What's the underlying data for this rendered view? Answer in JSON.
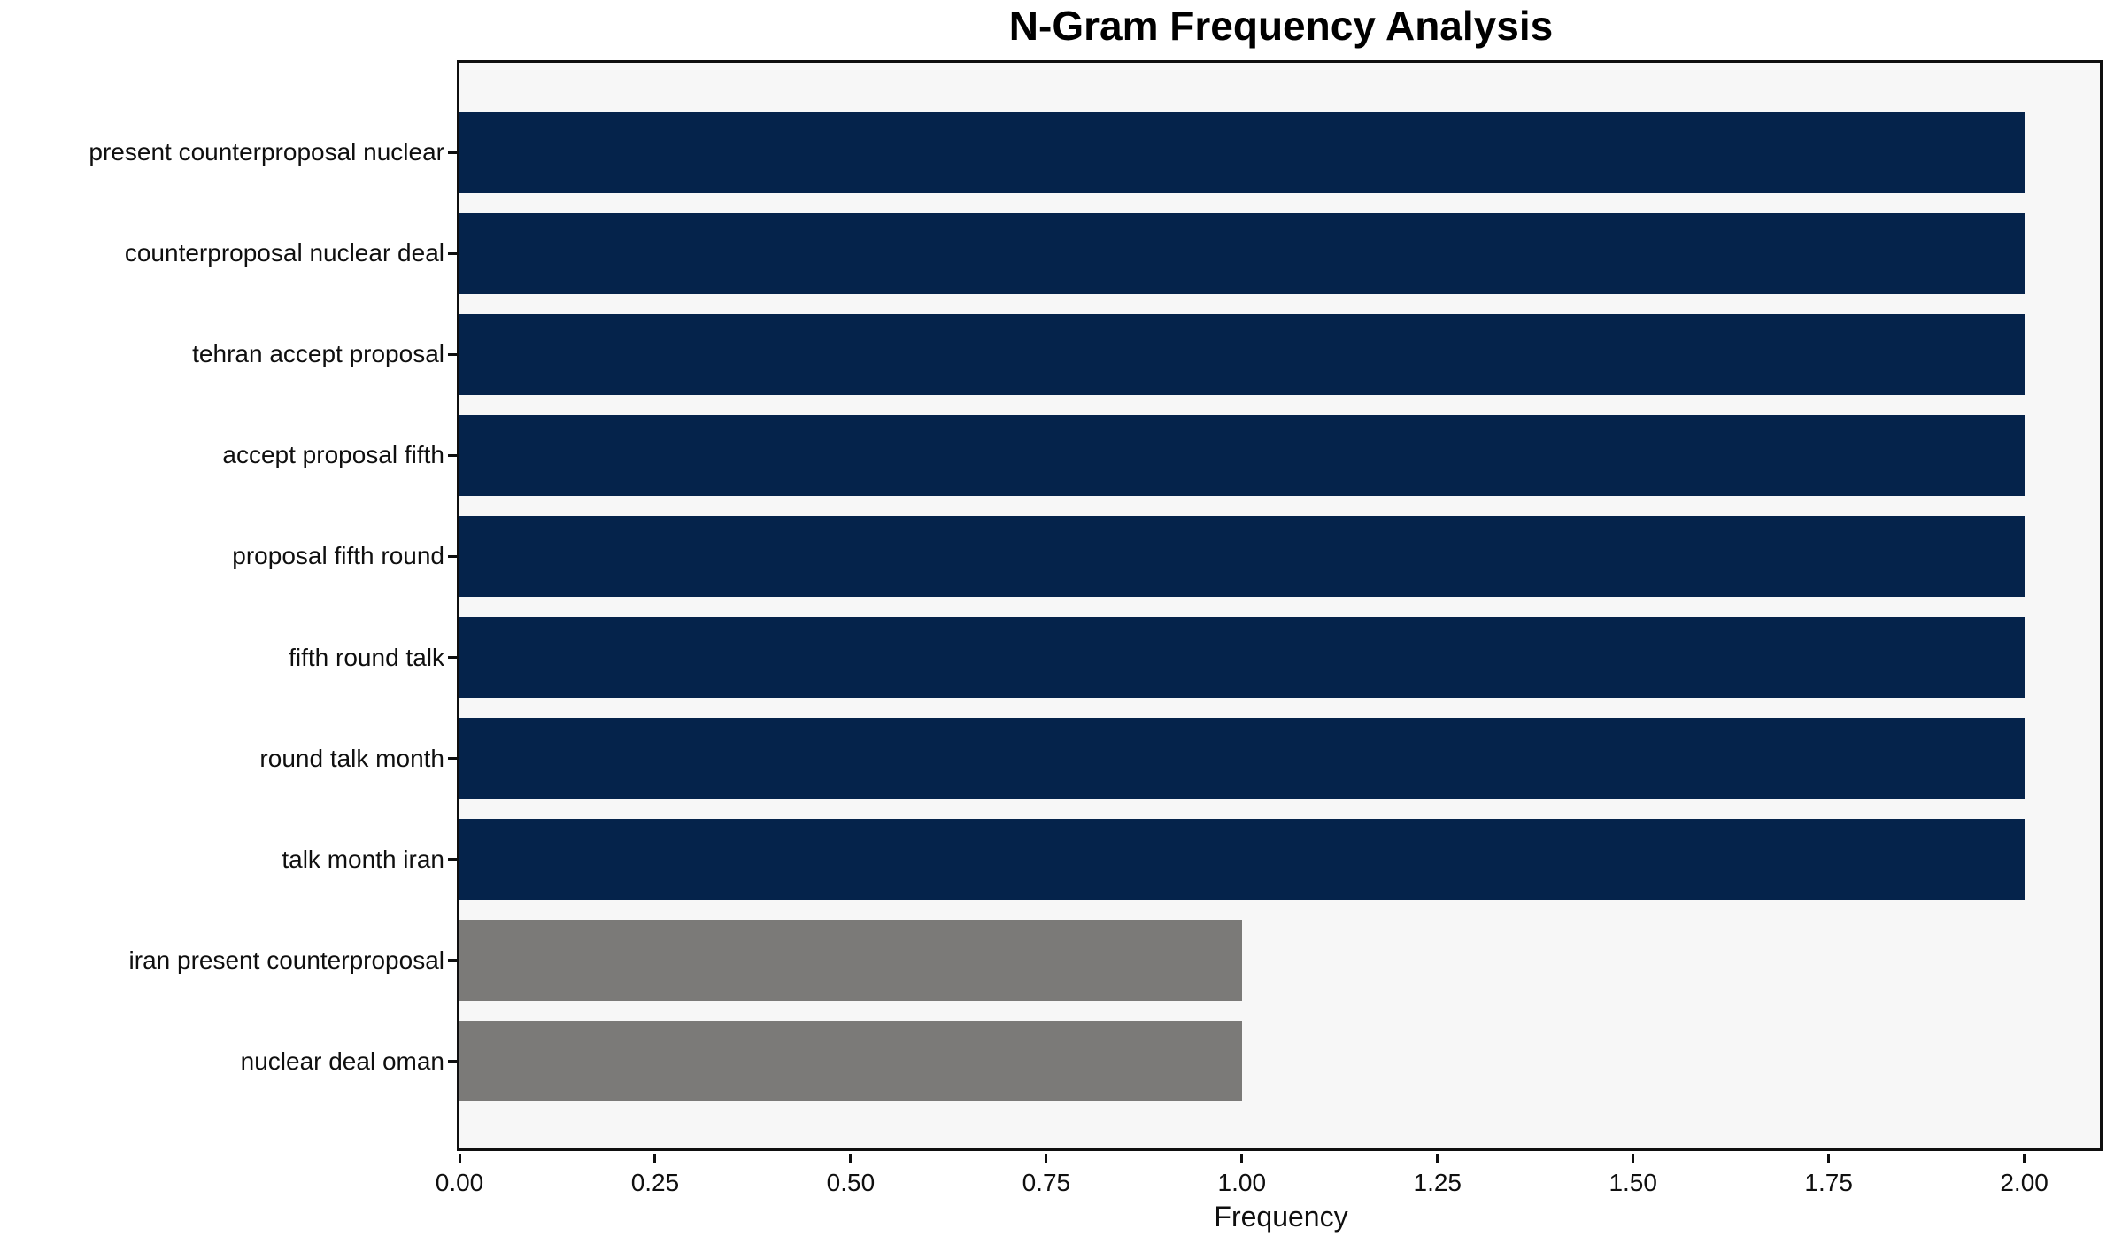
{
  "figure": {
    "background": "#ffffff",
    "plot_background": "#f7f7f7",
    "frame_color": "#0f0f0f"
  },
  "chart_data": {
    "type": "bar",
    "orientation": "horizontal",
    "title": "N-Gram Frequency Analysis",
    "xlabel": "Frequency",
    "ylabel": "",
    "categories": [
      "present counterproposal nuclear",
      "counterproposal nuclear deal",
      "tehran accept proposal",
      "accept proposal fifth",
      "proposal fifth round",
      "fifth round talk",
      "round talk month",
      "talk month iran",
      "iran present counterproposal",
      "nuclear deal oman"
    ],
    "values": [
      2,
      2,
      2,
      2,
      2,
      2,
      2,
      2,
      1,
      1
    ],
    "bar_colors": [
      "#05234b",
      "#05234b",
      "#05234b",
      "#05234b",
      "#05234b",
      "#05234b",
      "#05234b",
      "#05234b",
      "#7b7a78",
      "#7b7a78"
    ],
    "xlim": [
      0,
      2.1
    ],
    "xticks": {
      "values": [
        0,
        0.25,
        0.5,
        0.75,
        1.0,
        1.25,
        1.5,
        1.75,
        2.0
      ],
      "labels": [
        "0.00",
        "0.25",
        "0.50",
        "0.75",
        "1.00",
        "1.25",
        "1.50",
        "1.75",
        "2.00"
      ]
    },
    "grid": false,
    "legend": null,
    "bar_height_fraction": 0.8,
    "colors": {
      "bar_primary": "#05234b",
      "bar_secondary": "#7b7a78"
    }
  }
}
